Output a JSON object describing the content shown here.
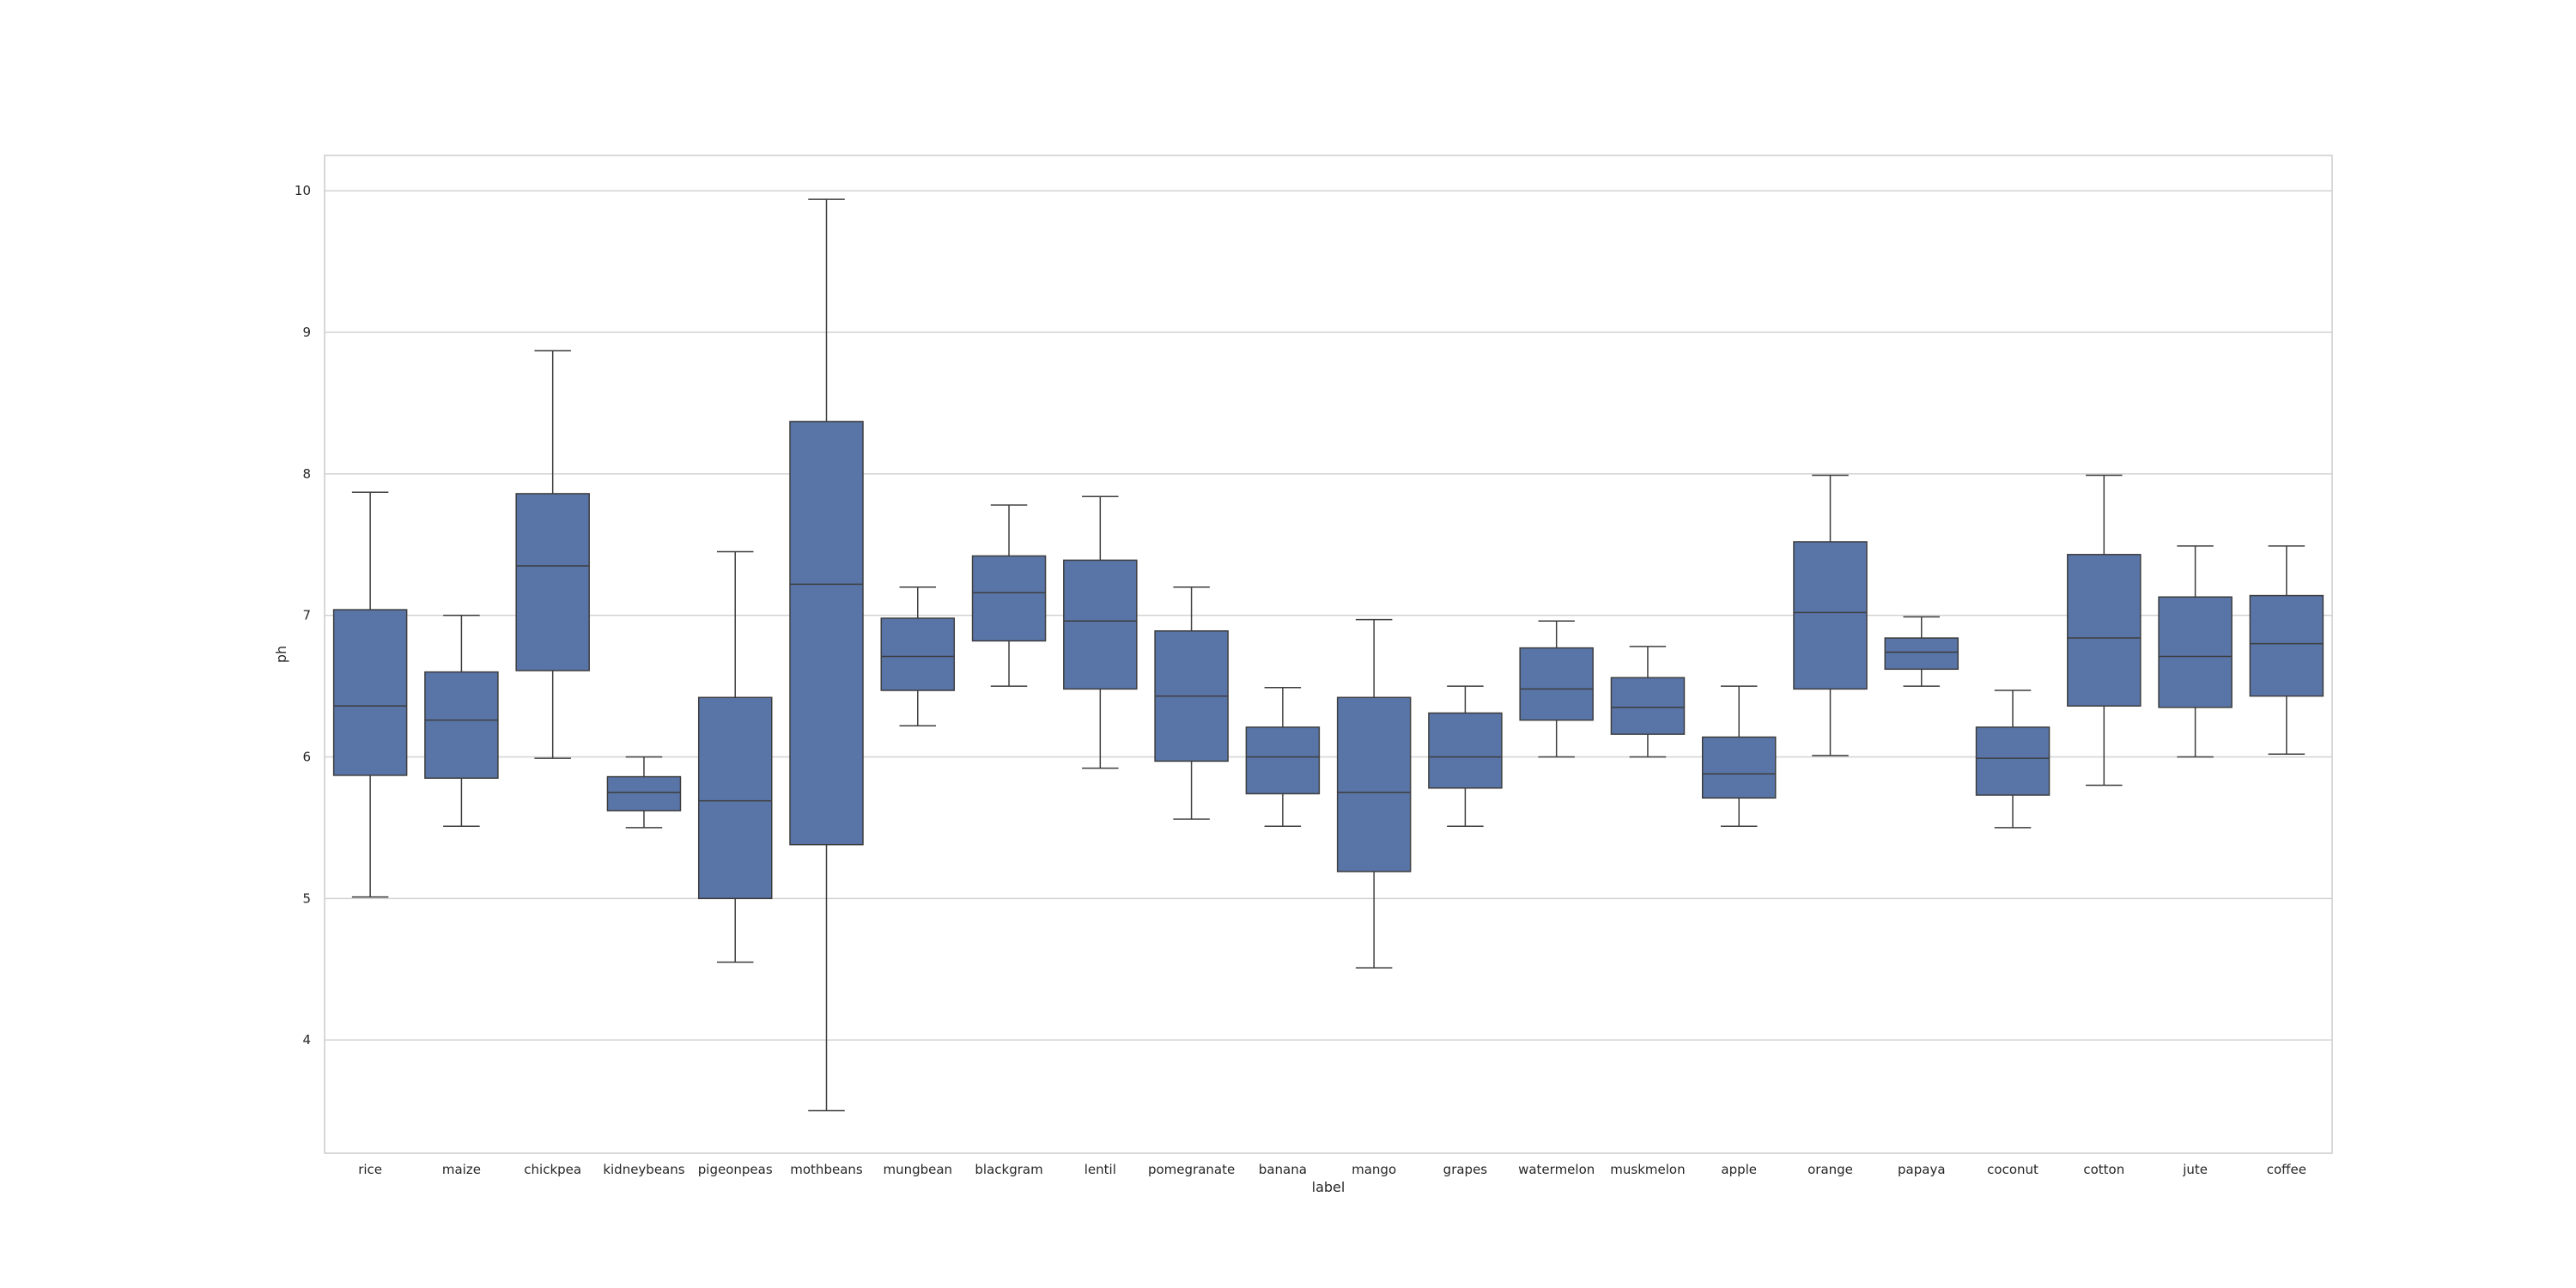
{
  "chart_data": {
    "type": "box",
    "xlabel": "label",
    "ylabel": "ph",
    "ylim": [
      3.2,
      10.25
    ],
    "yticks": [
      4,
      5,
      6,
      7,
      8,
      9,
      10
    ],
    "grid": true,
    "box_color": "#5975a8",
    "line_color": "#3d3d3d",
    "grid_color": "#d3d3d3",
    "spine_color": "#cccccc",
    "categories": [
      "rice",
      "maize",
      "chickpea",
      "kidneybeans",
      "pigeonpeas",
      "mothbeans",
      "mungbean",
      "blackgram",
      "lentil",
      "pomegranate",
      "banana",
      "mango",
      "grapes",
      "watermelon",
      "muskmelon",
      "apple",
      "orange",
      "papaya",
      "coconut",
      "cotton",
      "jute",
      "coffee"
    ],
    "boxes": [
      {
        "label": "rice",
        "whisker_low": 5.01,
        "q1": 5.87,
        "median": 6.36,
        "q3": 7.04,
        "whisker_high": 7.87
      },
      {
        "label": "maize",
        "whisker_low": 5.51,
        "q1": 5.85,
        "median": 6.26,
        "q3": 6.6,
        "whisker_high": 7.0
      },
      {
        "label": "chickpea",
        "whisker_low": 5.99,
        "q1": 6.61,
        "median": 7.35,
        "q3": 7.86,
        "whisker_high": 8.87
      },
      {
        "label": "kidneybeans",
        "whisker_low": 5.5,
        "q1": 5.62,
        "median": 5.75,
        "q3": 5.86,
        "whisker_high": 6.0
      },
      {
        "label": "pigeonpeas",
        "whisker_low": 4.55,
        "q1": 5.0,
        "median": 5.69,
        "q3": 6.42,
        "whisker_high": 7.45
      },
      {
        "label": "mothbeans",
        "whisker_low": 3.5,
        "q1": 5.38,
        "median": 7.22,
        "q3": 8.37,
        "whisker_high": 9.94
      },
      {
        "label": "mungbean",
        "whisker_low": 6.22,
        "q1": 6.47,
        "median": 6.71,
        "q3": 6.98,
        "whisker_high": 7.2
      },
      {
        "label": "blackgram",
        "whisker_low": 6.5,
        "q1": 6.82,
        "median": 7.16,
        "q3": 7.42,
        "whisker_high": 7.78
      },
      {
        "label": "lentil",
        "whisker_low": 5.92,
        "q1": 6.48,
        "median": 6.96,
        "q3": 7.39,
        "whisker_high": 7.84
      },
      {
        "label": "pomegranate",
        "whisker_low": 5.56,
        "q1": 5.97,
        "median": 6.43,
        "q3": 6.89,
        "whisker_high": 7.2
      },
      {
        "label": "banana",
        "whisker_low": 5.51,
        "q1": 5.74,
        "median": 6.0,
        "q3": 6.21,
        "whisker_high": 6.49
      },
      {
        "label": "mango",
        "whisker_low": 4.51,
        "q1": 5.19,
        "median": 5.75,
        "q3": 6.42,
        "whisker_high": 6.97
      },
      {
        "label": "grapes",
        "whisker_low": 5.51,
        "q1": 5.78,
        "median": 6.0,
        "q3": 6.31,
        "whisker_high": 6.5
      },
      {
        "label": "watermelon",
        "whisker_low": 6.0,
        "q1": 6.26,
        "median": 6.48,
        "q3": 6.77,
        "whisker_high": 6.96
      },
      {
        "label": "muskmelon",
        "whisker_low": 6.0,
        "q1": 6.16,
        "median": 6.35,
        "q3": 6.56,
        "whisker_high": 6.78
      },
      {
        "label": "apple",
        "whisker_low": 5.51,
        "q1": 5.71,
        "median": 5.88,
        "q3": 6.14,
        "whisker_high": 6.5
      },
      {
        "label": "orange",
        "whisker_low": 6.01,
        "q1": 6.48,
        "median": 7.02,
        "q3": 7.52,
        "whisker_high": 7.99
      },
      {
        "label": "papaya",
        "whisker_low": 6.5,
        "q1": 6.62,
        "median": 6.74,
        "q3": 6.84,
        "whisker_high": 6.99
      },
      {
        "label": "coconut",
        "whisker_low": 5.5,
        "q1": 5.73,
        "median": 5.99,
        "q3": 6.21,
        "whisker_high": 6.47
      },
      {
        "label": "cotton",
        "whisker_low": 5.8,
        "q1": 6.36,
        "median": 6.84,
        "q3": 7.43,
        "whisker_high": 7.99
      },
      {
        "label": "jute",
        "whisker_low": 6.0,
        "q1": 6.35,
        "median": 6.71,
        "q3": 7.13,
        "whisker_high": 7.49
      },
      {
        "label": "coffee",
        "whisker_low": 6.02,
        "q1": 6.43,
        "median": 6.8,
        "q3": 7.14,
        "whisker_high": 7.49
      }
    ]
  }
}
